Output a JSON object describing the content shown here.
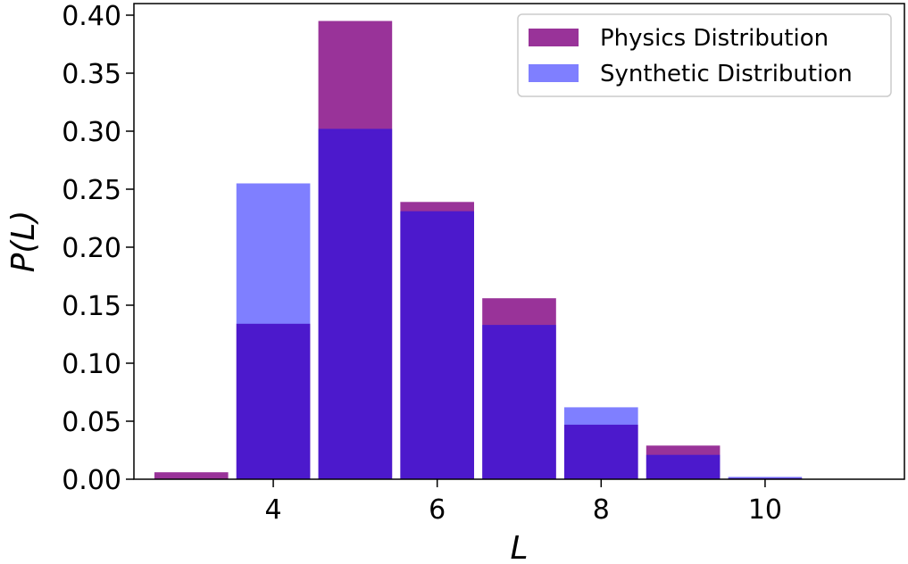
{
  "chart_data": {
    "type": "bar",
    "xlabel": "L",
    "ylabel": "P(L)",
    "xlim": [
      2.3,
      11.7
    ],
    "ylim": [
      0,
      0.41
    ],
    "xticks": [
      4,
      6,
      8,
      10
    ],
    "yticks": [
      0.0,
      0.05,
      0.1,
      0.15,
      0.2,
      0.25,
      0.3,
      0.35,
      0.4
    ],
    "yticklabels": [
      "0.00",
      "0.05",
      "0.10",
      "0.15",
      "0.20",
      "0.25",
      "0.30",
      "0.35",
      "0.40"
    ],
    "bar_width": 0.9,
    "grid": false,
    "legend_position": "top-right",
    "x": [
      3,
      4,
      5,
      6,
      7,
      8,
      9,
      10
    ],
    "series": [
      {
        "name": "Physics Distribution",
        "color": "#800080",
        "opacity": 0.8,
        "values": [
          0.006,
          0.134,
          0.395,
          0.239,
          0.156,
          0.047,
          0.029,
          0.001
        ]
      },
      {
        "name": "Synthetic Distribution",
        "color": "#0000ff",
        "opacity": 0.5,
        "values": [
          0.0,
          0.255,
          0.302,
          0.231,
          0.133,
          0.062,
          0.021,
          0.002
        ]
      }
    ]
  }
}
